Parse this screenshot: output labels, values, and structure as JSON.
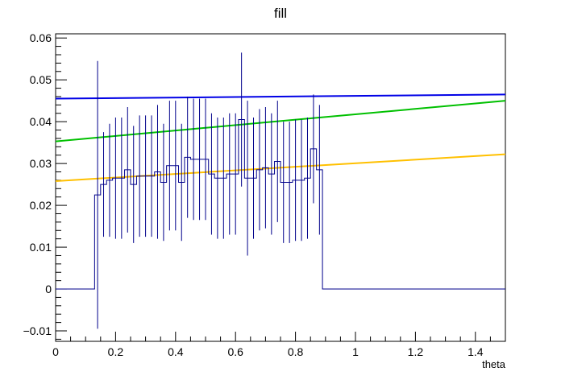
{
  "chart_data": {
    "type": "histogram",
    "title": "fill",
    "xlabel": "theta",
    "ylabel": "",
    "xlim": [
      0,
      1.5
    ],
    "ylim": [
      -0.0125,
      0.061
    ],
    "x_ticks": [
      0,
      0.2,
      0.4,
      0.6,
      0.8,
      1,
      1.2,
      1.4
    ],
    "x_tick_labels": [
      "0",
      "0.2",
      "0.4",
      "0.6",
      "0.8",
      "1",
      "1.2",
      "1.4"
    ],
    "y_ticks": [
      -0.01,
      0,
      0.01,
      0.02,
      0.03,
      0.04,
      0.05,
      0.06
    ],
    "y_tick_labels": [
      "−0.01",
      "0",
      "0.01",
      "0.02",
      "0.03",
      "0.04",
      "0.05",
      "0.06"
    ],
    "histogram": {
      "color": "#00008b",
      "bin_edges": [
        0.13,
        0.15,
        0.17,
        0.19,
        0.21,
        0.23,
        0.25,
        0.27,
        0.29,
        0.31,
        0.33,
        0.35,
        0.37,
        0.39,
        0.41,
        0.43,
        0.45,
        0.47,
        0.49,
        0.51,
        0.53,
        0.55,
        0.57,
        0.59,
        0.61,
        0.63,
        0.65,
        0.67,
        0.69,
        0.71,
        0.73,
        0.75,
        0.77,
        0.79,
        0.81,
        0.83,
        0.85,
        0.87,
        0.89
      ],
      "values": [
        0.0225,
        0.025,
        0.026,
        0.0265,
        0.0265,
        0.0285,
        0.025,
        0.027,
        0.027,
        0.027,
        0.028,
        0.0255,
        0.0295,
        0.0295,
        0.0255,
        0.0315,
        0.031,
        0.031,
        0.031,
        0.0275,
        0.0265,
        0.0265,
        0.0275,
        0.0275,
        0.0405,
        0.0265,
        0.0265,
        0.0285,
        0.029,
        0.0275,
        0.0305,
        0.0255,
        0.0255,
        0.026,
        0.026,
        0.0265,
        0.0335,
        0.0285
      ],
      "errors": [
        0.032,
        0.0125,
        0.0135,
        0.0145,
        0.0145,
        0.015,
        0.014,
        0.0145,
        0.0145,
        0.0145,
        0.016,
        0.014,
        0.0155,
        0.0155,
        0.014,
        0.0145,
        0.0145,
        0.0145,
        0.0145,
        0.0145,
        0.0145,
        0.0145,
        0.0145,
        0.0145,
        0.016,
        0.0185,
        0.0145,
        0.0145,
        0.0145,
        0.0145,
        0.0145,
        0.0145,
        0.0145,
        0.0145,
        0.0145,
        0.0145,
        0.013,
        0.0155
      ],
      "outside_value": 0
    },
    "series": [
      {
        "type": "line",
        "color": "#0000e6",
        "x": [
          0,
          1.5
        ],
        "y": [
          0.0455,
          0.0465
        ]
      },
      {
        "type": "line",
        "color": "#00c000",
        "x": [
          0,
          1.5
        ],
        "y": [
          0.0353,
          0.045
        ]
      },
      {
        "type": "line",
        "color": "#ffc000",
        "x": [
          0,
          1.5
        ],
        "y": [
          0.0258,
          0.0322
        ]
      }
    ]
  }
}
